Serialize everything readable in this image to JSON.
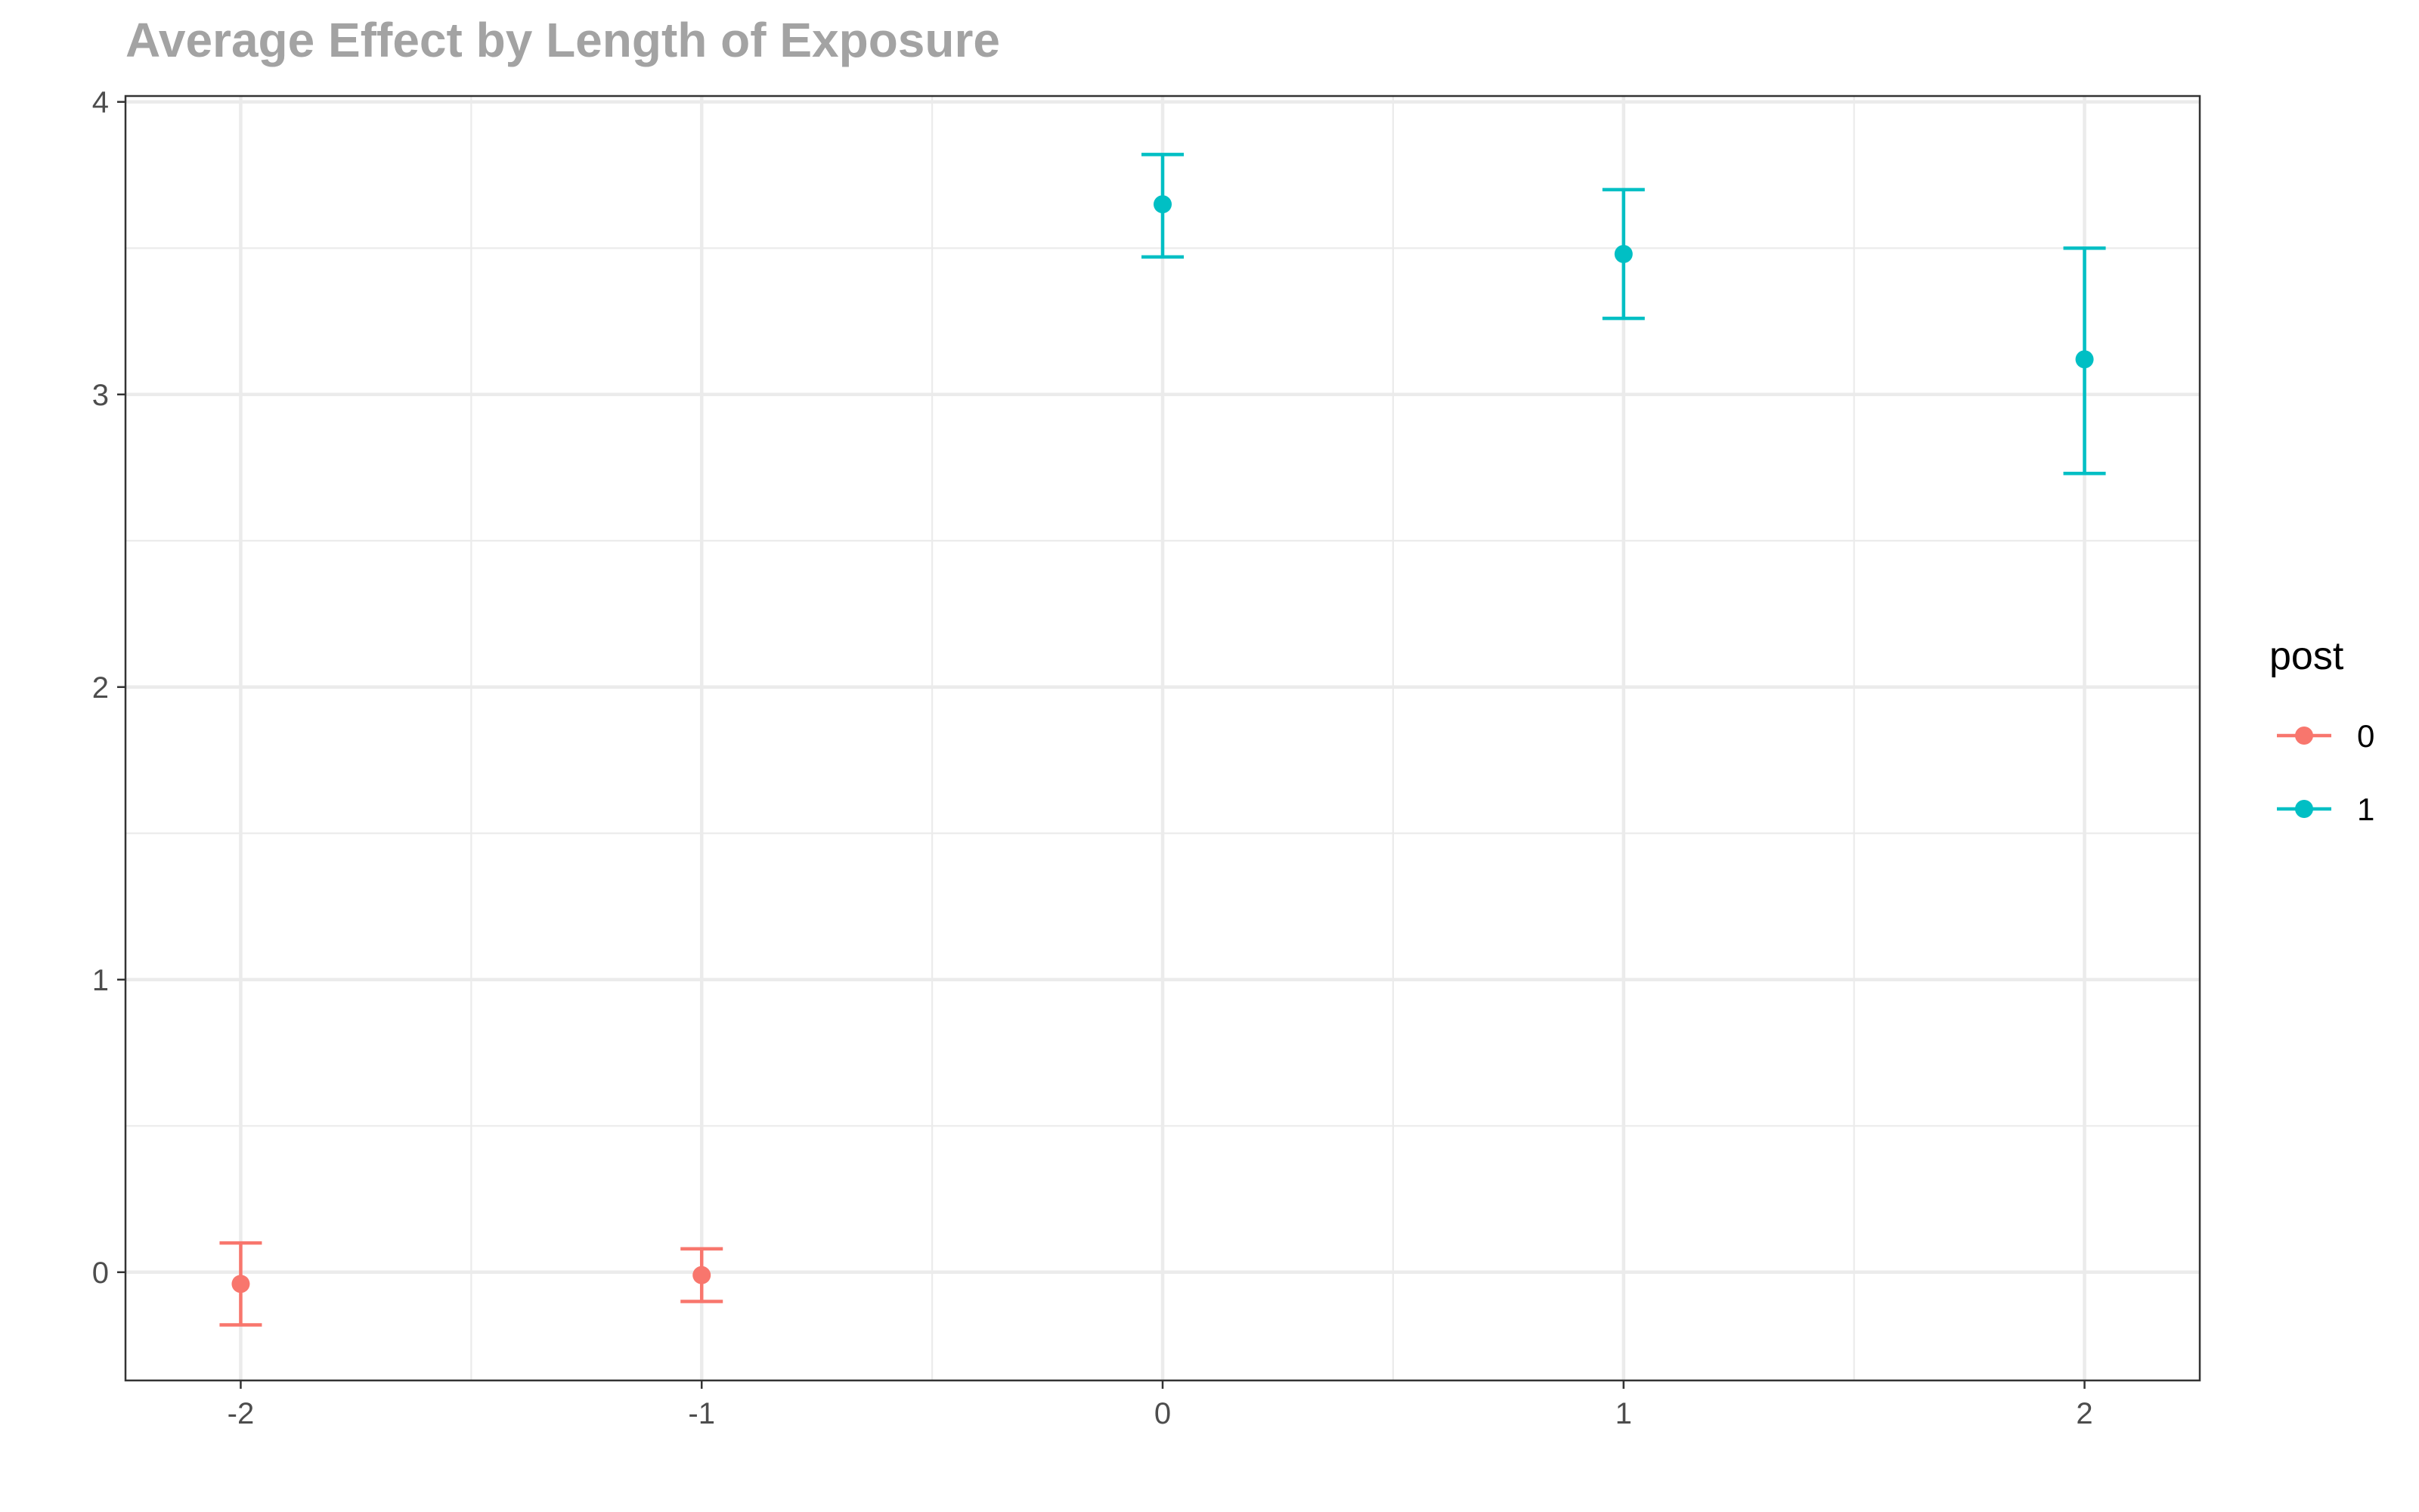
{
  "chart_data": {
    "type": "scatter",
    "title": "Average Effect by Length of Exposure",
    "xlabel": "",
    "ylabel": "",
    "x_ticks": [
      "-2",
      "-1",
      "0",
      "1",
      "2"
    ],
    "y_ticks": [
      "0",
      "1",
      "2",
      "3",
      "4"
    ],
    "xlim": [
      -2.25,
      2.25
    ],
    "ylim": [
      -0.37,
      4.02
    ],
    "grid": true,
    "legend": {
      "title": "post",
      "placement": "right",
      "entries": [
        "0",
        "1"
      ]
    },
    "series": [
      {
        "name": "0",
        "color": "#F8766D",
        "points": [
          {
            "x": -2,
            "y": -0.04,
            "ymin": -0.18,
            "ymax": 0.1
          },
          {
            "x": -1,
            "y": -0.01,
            "ymin": -0.1,
            "ymax": 0.08
          }
        ]
      },
      {
        "name": "1",
        "color": "#00BFC4",
        "points": [
          {
            "x": 0,
            "y": 3.65,
            "ymin": 3.47,
            "ymax": 3.82
          },
          {
            "x": 1,
            "y": 3.48,
            "ymin": 3.26,
            "ymax": 3.7
          },
          {
            "x": 2,
            "y": 3.12,
            "ymin": 2.73,
            "ymax": 3.5
          }
        ]
      }
    ]
  }
}
